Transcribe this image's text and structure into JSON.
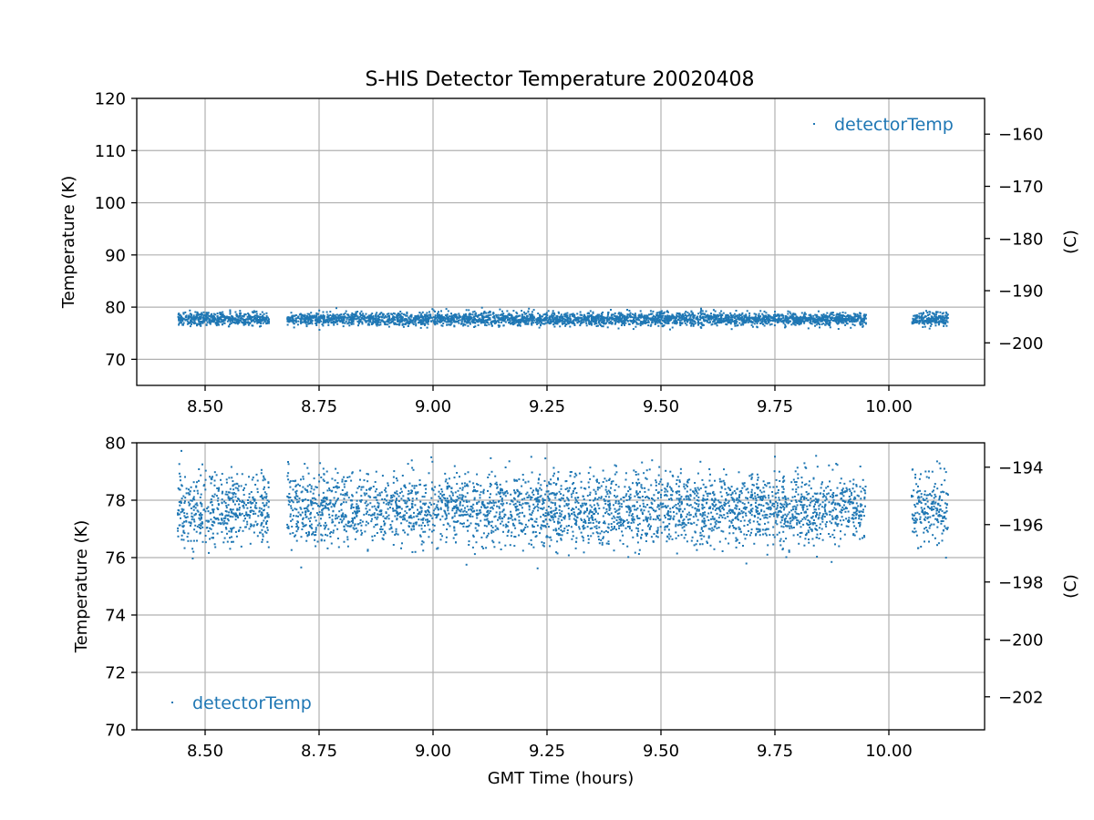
{
  "chart_data": [
    {
      "type": "scatter",
      "title": "S-HIS Detector Temperature 20020408",
      "xlabel": "",
      "ylabel": "Temperature (K)",
      "y2label": "(C)",
      "xlim": [
        8.35,
        10.21
      ],
      "ylim": [
        65,
        120
      ],
      "y2lim": [
        -208.15,
        -153.15
      ],
      "xticks": [
        "8.50",
        "8.75",
        "9.00",
        "9.25",
        "9.50",
        "9.75",
        "10.00"
      ],
      "xtick_values": [
        8.5,
        8.75,
        9.0,
        9.25,
        9.5,
        9.75,
        10.0
      ],
      "yticks": [
        "70",
        "80",
        "90",
        "100",
        "110",
        "120"
      ],
      "ytick_values": [
        70,
        80,
        90,
        100,
        110,
        120
      ],
      "y2ticks": [
        "−200",
        "−190",
        "−180",
        "−170",
        "−160"
      ],
      "y2tick_values": [
        -200,
        -190,
        -180,
        -170,
        -160
      ],
      "grid": true,
      "legend": {
        "position": "top-right",
        "entries": [
          "detectorTemp"
        ]
      },
      "series": [
        {
          "name": "detectorTemp",
          "color": "#1f77b4",
          "segments": [
            [
              8.44,
              8.64
            ],
            [
              8.68,
              9.95
            ],
            [
              10.05,
              10.13
            ]
          ],
          "mean": 77.7,
          "typical_range": [
            76.3,
            79.2
          ],
          "min": 75.6,
          "max": 80.0
        }
      ]
    },
    {
      "type": "scatter",
      "title": "",
      "xlabel": "GMT Time (hours)",
      "ylabel": "Temperature (K)",
      "y2label": "(C)",
      "xlim": [
        8.35,
        10.21
      ],
      "ylim": [
        70,
        80
      ],
      "y2lim": [
        -203.15,
        -193.15
      ],
      "xticks": [
        "8.50",
        "8.75",
        "9.00",
        "9.25",
        "9.50",
        "9.75",
        "10.00"
      ],
      "xtick_values": [
        8.5,
        8.75,
        9.0,
        9.25,
        9.5,
        9.75,
        10.0
      ],
      "yticks": [
        "70",
        "72",
        "74",
        "76",
        "78",
        "80"
      ],
      "ytick_values": [
        70,
        72,
        74,
        76,
        78,
        80
      ],
      "y2ticks": [
        "−202",
        "−200",
        "−198",
        "−196",
        "−194"
      ],
      "y2tick_values": [
        -202,
        -200,
        -198,
        -196,
        -194
      ],
      "grid": true,
      "legend": {
        "position": "bottom-left",
        "entries": [
          "detectorTemp"
        ]
      },
      "series": [
        {
          "name": "detectorTemp",
          "color": "#1f77b4",
          "segments": [
            [
              8.44,
              8.64
            ],
            [
              8.68,
              9.95
            ],
            [
              10.05,
              10.13
            ]
          ],
          "mean": 77.7,
          "typical_range": [
            76.3,
            79.2
          ],
          "min": 75.6,
          "max": 80.0
        }
      ]
    }
  ]
}
